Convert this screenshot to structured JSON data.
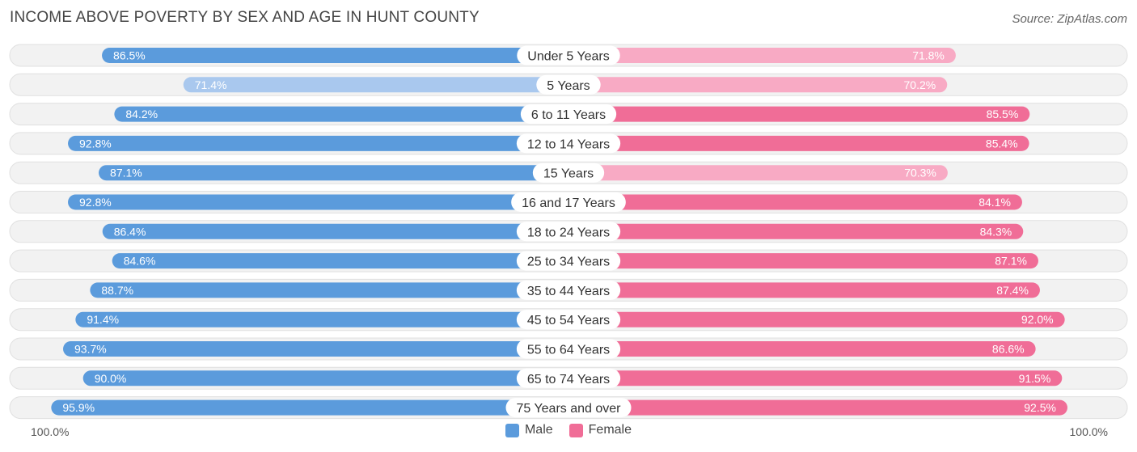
{
  "title": "INCOME ABOVE POVERTY BY SEX AND AGE IN HUNT COUNTY",
  "source": "Source: ZipAtlas.com",
  "axis": {
    "left_label": "100.0%",
    "right_label": "100.0%"
  },
  "legend": [
    {
      "label": "Male",
      "color": "#5b9bdc"
    },
    {
      "label": "Female",
      "color": "#f06d97"
    }
  ],
  "chart_data": {
    "type": "bar",
    "orientation": "horizontal-diverging",
    "categories": [
      "Under 5 Years",
      "5 Years",
      "6 to 11 Years",
      "12 to 14 Years",
      "15 Years",
      "16 and 17 Years",
      "18 to 24 Years",
      "25 to 34 Years",
      "35 to 44 Years",
      "45 to 54 Years",
      "55 to 64 Years",
      "65 to 74 Years",
      "75 Years and over"
    ],
    "series": [
      {
        "name": "Male",
        "values": [
          86.5,
          71.4,
          84.2,
          92.8,
          87.1,
          92.8,
          86.4,
          84.6,
          88.7,
          91.4,
          93.7,
          90.0,
          95.9
        ],
        "labels": [
          "86.5%",
          "71.4%",
          "84.2%",
          "92.8%",
          "87.1%",
          "92.8%",
          "86.4%",
          "84.6%",
          "88.7%",
          "91.4%",
          "93.7%",
          "90.0%",
          "95.9%"
        ]
      },
      {
        "name": "Female",
        "values": [
          71.8,
          70.2,
          85.5,
          85.4,
          70.3,
          84.1,
          84.3,
          87.1,
          87.4,
          92.0,
          86.6,
          91.5,
          92.5
        ],
        "labels": [
          "71.8%",
          "70.2%",
          "85.5%",
          "85.4%",
          "70.3%",
          "84.1%",
          "84.3%",
          "87.1%",
          "87.4%",
          "92.0%",
          "86.6%",
          "91.5%",
          "92.5%"
        ]
      }
    ],
    "xlim": [
      0,
      100
    ],
    "colors": {
      "male_strong": "#5b9bdc",
      "male_light": "#a9c8ee",
      "female_strong": "#f06d97",
      "female_light": "#f8aac4",
      "row_background": "#f2f2f2"
    }
  }
}
